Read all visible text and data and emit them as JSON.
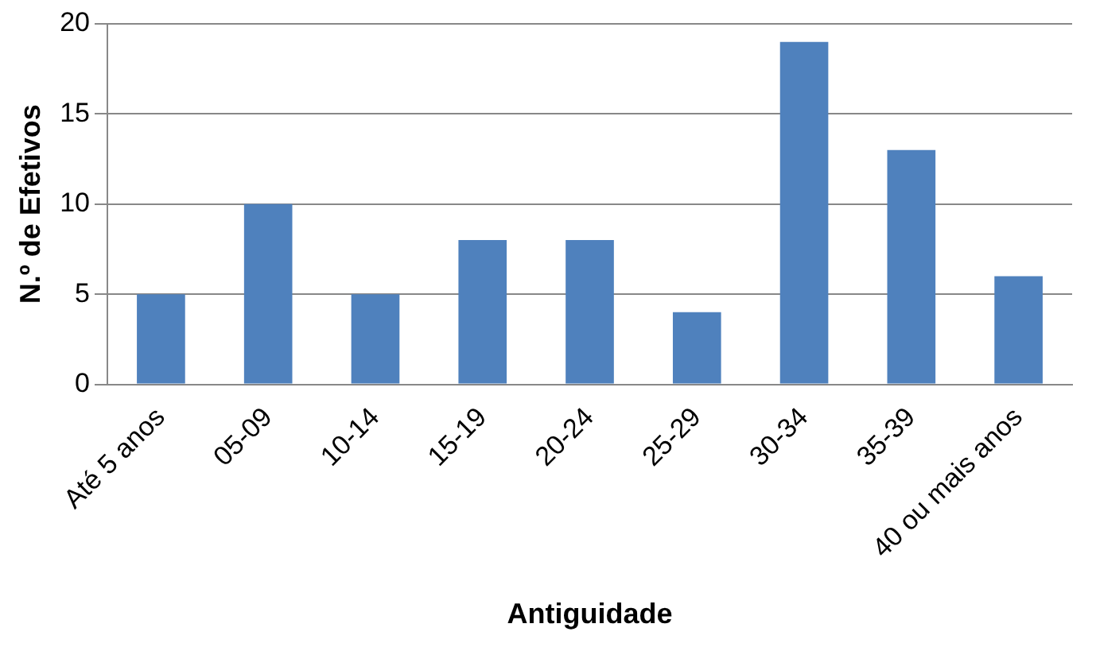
{
  "chart_data": {
    "type": "bar",
    "xlabel": "Antiguidade",
    "ylabel": "N.º de Efetivos",
    "categories": [
      "Até 5 anos",
      "05-09",
      "10-14",
      "15-19",
      "20-24",
      "25-29",
      "30-34",
      "35-39",
      "40 ou mais anos"
    ],
    "values": [
      5,
      10,
      5,
      8,
      8,
      4,
      19,
      13,
      6
    ],
    "color": "#4f81bd",
    "ylim": [
      0,
      20
    ],
    "yticks": [
      0,
      5,
      10,
      15,
      20
    ],
    "grid": "y",
    "legend": false
  }
}
